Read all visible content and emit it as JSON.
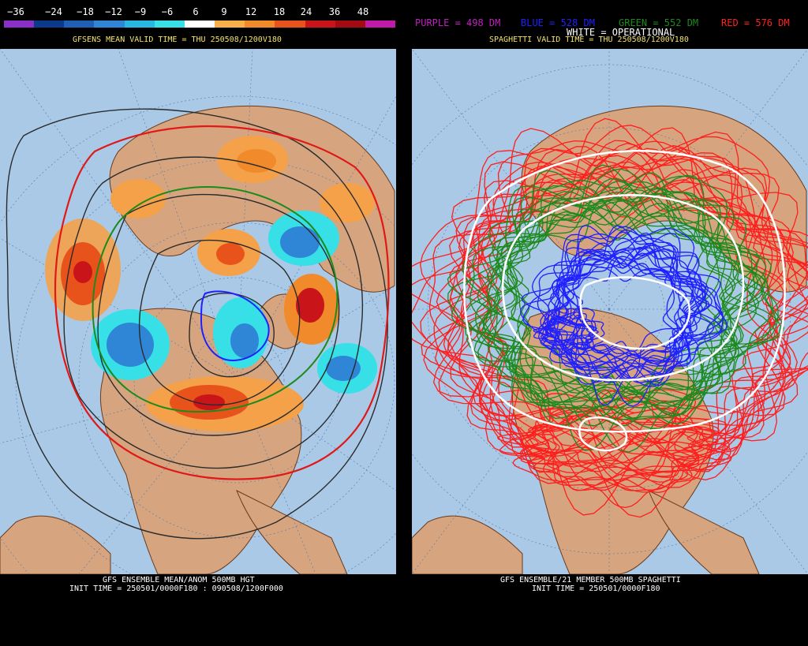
{
  "left": {
    "colorbar": {
      "labels": [
        "−36",
        "−24",
        "−18",
        "−12",
        "−9",
        "−6",
        "6",
        "9",
        "12",
        "18",
        "24",
        "36",
        "48"
      ],
      "colors": [
        "#8b2fc9",
        "#0b3a8a",
        "#1f5fb5",
        "#2f86d6",
        "#28b7e0",
        "#36e0e6",
        "#ffffff",
        "#f7b04a",
        "#f08a2a",
        "#e8531c",
        "#c9141a",
        "#a30a12",
        "#c21aa8"
      ]
    },
    "title": "GFSENS MEAN VALID TIME = THU 250508/1200V180",
    "footer_line1": "GFS ENSEMBLE MEAN/ANOM 500MB HGT",
    "footer_line2": "INIT TIME = 250501/0000F180 : 090508/1200F000"
  },
  "right": {
    "legend": {
      "purple": "PURPLE = 498 DM",
      "blue": "BLUE = 528 DM",
      "green": "GREEN = 552 DM",
      "red": "RED = 576 DM",
      "white": "WHITE = OPERATIONAL"
    },
    "legend_colors": {
      "purple": "#c020c0",
      "blue": "#2020ff",
      "green": "#1c8a1c",
      "red": "#ff2020",
      "white": "#ffffff"
    },
    "title": "SPAGHETTI VALID TIME = THU 250508/1200V180",
    "footer_line1": "GFS ENSEMBLE/21 MEMBER 500MB SPAGHETTI",
    "footer_line2": "INIT TIME = 250501/0000F180"
  }
}
